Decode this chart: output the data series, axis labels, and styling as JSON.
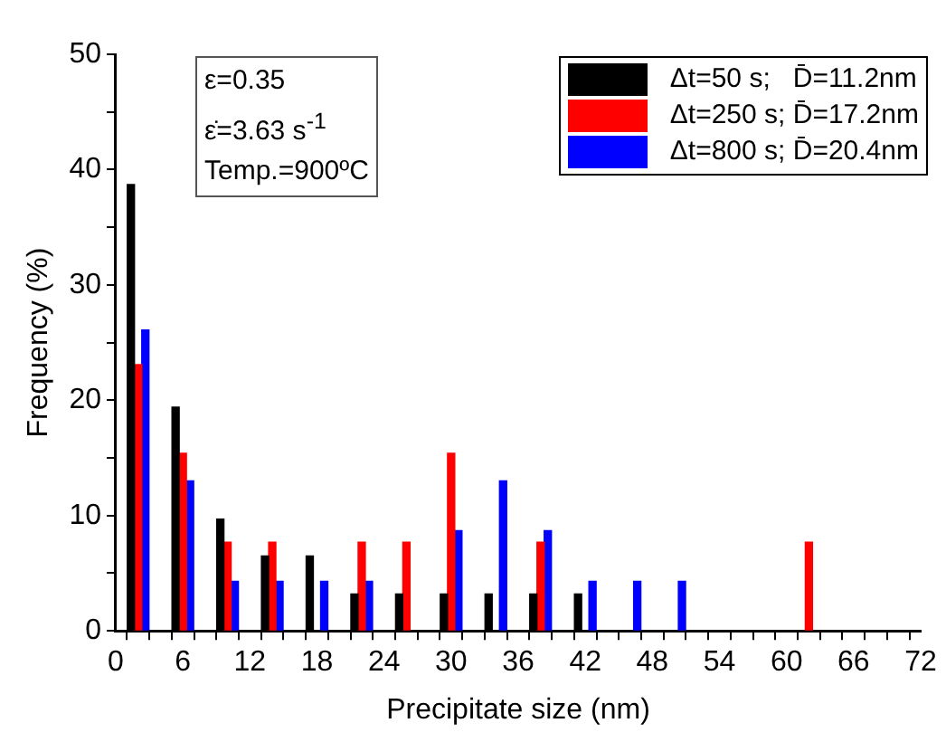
{
  "chart_data": {
    "type": "bar",
    "xlabel": "Precipitate size (nm)",
    "ylabel": "Frequency (%)",
    "x": [
      2,
      6,
      10,
      14,
      18,
      22,
      26,
      30,
      34,
      38,
      42,
      46,
      50,
      54,
      58,
      62
    ],
    "series": [
      {
        "name": "Δt=50 s;   D̄=11.2nm",
        "color": "#000000",
        "values": [
          38.7,
          19.4,
          9.7,
          6.5,
          6.5,
          3.2,
          3.2,
          3.2,
          3.2,
          3.2,
          3.2,
          null,
          null,
          null,
          null,
          null
        ]
      },
      {
        "name": "Δt=250 s; D̄=17.2nm",
        "color": "#ff0000",
        "values": [
          23.1,
          15.4,
          7.7,
          7.7,
          null,
          7.7,
          7.7,
          15.4,
          null,
          7.7,
          null,
          null,
          null,
          null,
          null,
          7.7
        ]
      },
      {
        "name": "Δt=800 s; D̄=20.4nm",
        "color": "#0000ff",
        "values": [
          26.1,
          13.0,
          4.3,
          4.3,
          4.3,
          4.3,
          null,
          8.7,
          13.0,
          8.7,
          4.3,
          4.3,
          4.3,
          null,
          null,
          null
        ]
      }
    ],
    "xlim": [
      0,
      72
    ],
    "xticks": [
      0,
      {
        "value": 2,
        "label": null
      },
      {
        "value": 4,
        "label": null
      },
      6,
      {
        "value": 8,
        "label": null
      },
      {
        "value": 10,
        "label": null
      },
      12,
      {
        "value": 14,
        "label": null
      },
      {
        "value": 16,
        "label": null
      },
      18,
      {
        "value": 20,
        "label": null
      },
      {
        "value": 22,
        "label": null
      },
      24,
      {
        "value": 26,
        "label": null
      },
      {
        "value": 28,
        "label": null
      },
      30,
      {
        "value": 32,
        "label": null
      },
      {
        "value": 34,
        "label": null
      },
      36,
      {
        "value": 38,
        "label": null
      },
      {
        "value": 40,
        "label": null
      },
      42,
      {
        "value": 44,
        "label": null
      },
      {
        "value": 46,
        "label": null
      },
      48,
      {
        "value": 50,
        "label": null
      },
      {
        "value": 52,
        "label": null
      },
      54,
      {
        "value": 56,
        "label": null
      },
      {
        "value": 58,
        "label": null
      },
      60,
      {
        "value": 62,
        "label": null
      },
      {
        "value": 64,
        "label": null
      },
      66,
      {
        "value": 68,
        "label": null
      },
      {
        "value": 70,
        "label": null
      },
      72
    ],
    "ylim": [
      0,
      50
    ],
    "yticks": [
      0,
      {
        "value": 5,
        "label": null
      },
      10,
      {
        "value": 15,
        "label": null
      },
      20,
      {
        "value": 25,
        "label": null
      },
      30,
      {
        "value": 35,
        "label": null
      },
      40,
      {
        "value": 45,
        "label": null
      },
      50
    ],
    "annotations": [
      "ε=0.35",
      "ε̇=3.63 s$^{-1}$",
      "Temp.=900ºC"
    ],
    "grid": false,
    "legend": "top right"
  }
}
